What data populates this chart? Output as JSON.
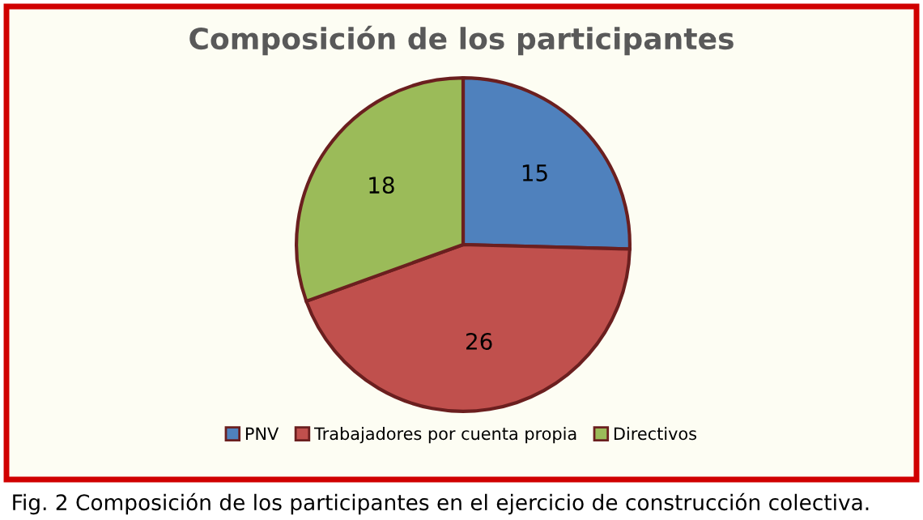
{
  "chart_data": {
    "type": "pie",
    "title": "Composición de los participantes",
    "categories": [
      "PNV",
      "Trabajadores por cuenta propia",
      "Directivos"
    ],
    "values": [
      15,
      26,
      18
    ],
    "colors": [
      "#4f81bd",
      "#c0504d",
      "#9bbb59"
    ],
    "data_labels": true,
    "legend": "bottom",
    "annotations": [
      "Fig. 2 Composición de los participantes en el ejercicio de construcción colectiva."
    ]
  }
}
